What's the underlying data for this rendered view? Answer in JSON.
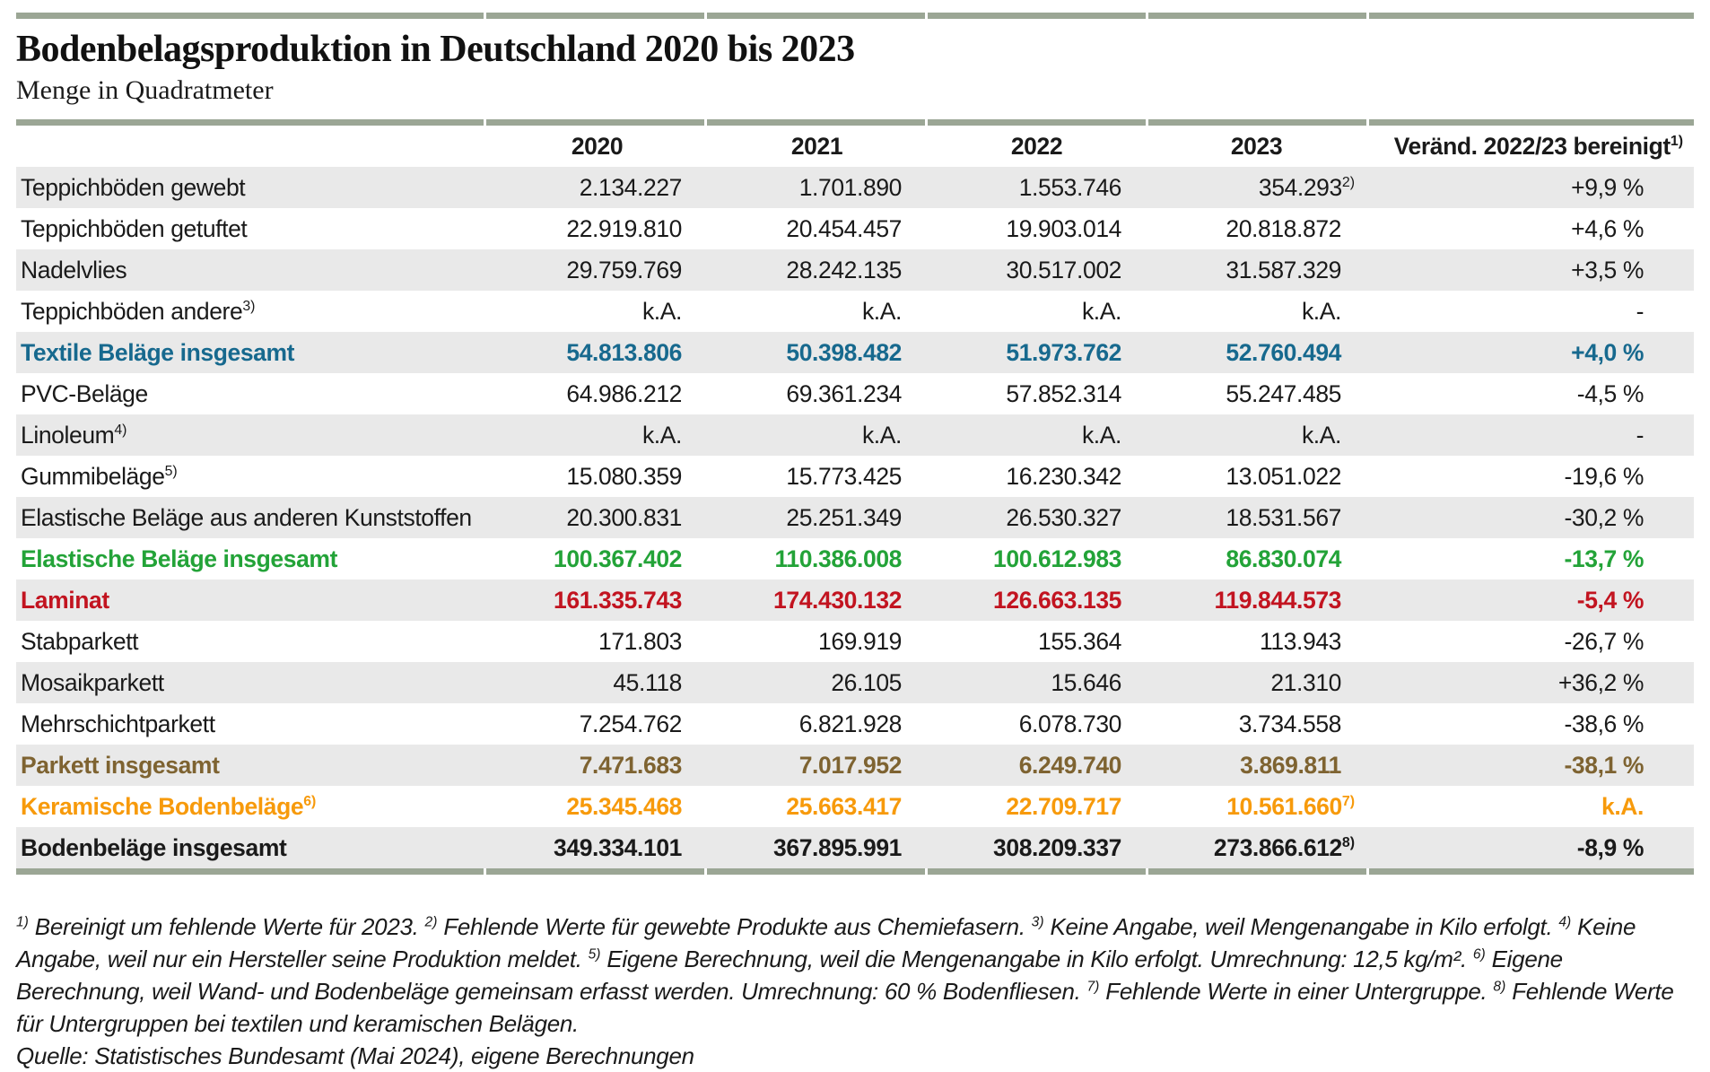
{
  "page": {
    "title": "Bodenbelagsproduktion in Deutschland 2020 bis 2023",
    "subtitle": "Menge in Quadratmeter"
  },
  "colors": {
    "teal": "#17698E",
    "green": "#23A338",
    "red": "#C21420",
    "brown": "#7E6331",
    "orange": "#F79A0B",
    "rule": "#9BA695",
    "stripe": "#E9E9E9"
  },
  "chart_data": {
    "type": "table",
    "title": "Bodenbelagsproduktion in Deutschland 2020 bis 2023",
    "unit": "Menge in Quadratmeter",
    "columns": [
      "2020",
      "2021",
      "2022",
      "2023",
      "Veränd. 2022/23 bereinigt"
    ],
    "change_col_sup": "1)",
    "rows": [
      {
        "label": "Teppichböden gewebt",
        "label_sup": "",
        "values": [
          "2.134.227",
          "1.701.890",
          "1.553.746",
          "354.293"
        ],
        "value_sups": [
          "",
          "",
          "",
          "2)"
        ],
        "change": "+9,9 %",
        "variant": ""
      },
      {
        "label": "Teppichböden getuftet",
        "label_sup": "",
        "values": [
          "22.919.810",
          "20.454.457",
          "19.903.014",
          "20.818.872"
        ],
        "value_sups": [
          "",
          "",
          "",
          ""
        ],
        "change": "+4,6 %",
        "variant": ""
      },
      {
        "label": "Nadelvlies",
        "label_sup": "",
        "values": [
          "29.759.769",
          "28.242.135",
          "30.517.002",
          "31.587.329"
        ],
        "value_sups": [
          "",
          "",
          "",
          ""
        ],
        "change": "+3,5 %",
        "variant": ""
      },
      {
        "label": "Teppichböden andere",
        "label_sup": "3)",
        "values": [
          "k.A.",
          "k.A.",
          "k.A.",
          "k.A."
        ],
        "value_sups": [
          "",
          "",
          "",
          ""
        ],
        "change": "-",
        "variant": ""
      },
      {
        "label": "Textile Beläge insgesamt",
        "label_sup": "",
        "values": [
          "54.813.806",
          "50.398.482",
          "51.973.762",
          "52.760.494"
        ],
        "value_sups": [
          "",
          "",
          "",
          ""
        ],
        "change": "+4,0 %",
        "variant": "teal"
      },
      {
        "label": "PVC-Beläge",
        "label_sup": "",
        "values": [
          "64.986.212",
          "69.361.234",
          "57.852.314",
          "55.247.485"
        ],
        "value_sups": [
          "",
          "",
          "",
          ""
        ],
        "change": "-4,5 %",
        "variant": ""
      },
      {
        "label": "Linoleum",
        "label_sup": "4)",
        "values": [
          "k.A.",
          "k.A.",
          "k.A.",
          "k.A."
        ],
        "value_sups": [
          "",
          "",
          "",
          ""
        ],
        "change": "-",
        "variant": ""
      },
      {
        "label": "Gummibeläge",
        "label_sup": "5)",
        "values": [
          "15.080.359",
          "15.773.425",
          "16.230.342",
          "13.051.022"
        ],
        "value_sups": [
          "",
          "",
          "",
          ""
        ],
        "change": "-19,6 %",
        "variant": ""
      },
      {
        "label": "Elastische Beläge aus anderen Kunststoffen",
        "label_sup": "",
        "values": [
          "20.300.831",
          "25.251.349",
          "26.530.327",
          "18.531.567"
        ],
        "value_sups": [
          "",
          "",
          "",
          ""
        ],
        "change": "-30,2 %",
        "variant": ""
      },
      {
        "label": "Elastische Beläge insgesamt",
        "label_sup": "",
        "values": [
          "100.367.402",
          "110.386.008",
          "100.612.983",
          "86.830.074"
        ],
        "value_sups": [
          "",
          "",
          "",
          ""
        ],
        "change": "-13,7 %",
        "variant": "green"
      },
      {
        "label": "Laminat",
        "label_sup": "",
        "values": [
          "161.335.743",
          "174.430.132",
          "126.663.135",
          "119.844.573"
        ],
        "value_sups": [
          "",
          "",
          "",
          ""
        ],
        "change": "-5,4 %",
        "variant": "red"
      },
      {
        "label": "Stabparkett",
        "label_sup": "",
        "values": [
          "171.803",
          "169.919",
          "155.364",
          "113.943"
        ],
        "value_sups": [
          "",
          "",
          "",
          ""
        ],
        "change": "-26,7 %",
        "variant": ""
      },
      {
        "label": "Mosaikparkett",
        "label_sup": "",
        "values": [
          "45.118",
          "26.105",
          "15.646",
          "21.310"
        ],
        "value_sups": [
          "",
          "",
          "",
          ""
        ],
        "change": "+36,2 %",
        "variant": ""
      },
      {
        "label": "Mehrschichtparkett",
        "label_sup": "",
        "values": [
          "7.254.762",
          "6.821.928",
          "6.078.730",
          "3.734.558"
        ],
        "value_sups": [
          "",
          "",
          "",
          ""
        ],
        "change": "-38,6 %",
        "variant": ""
      },
      {
        "label": "Parkett insgesamt",
        "label_sup": "",
        "values": [
          "7.471.683",
          "7.017.952",
          "6.249.740",
          "3.869.811"
        ],
        "value_sups": [
          "",
          "",
          "",
          ""
        ],
        "change": "-38,1 %",
        "variant": "brown"
      },
      {
        "label": "Keramische Bodenbeläge",
        "label_sup": "6)",
        "values": [
          "25.345.468",
          "25.663.417",
          "22.709.717",
          "10.561.660"
        ],
        "value_sups": [
          "",
          "",
          "",
          "7)"
        ],
        "change": "k.A.",
        "variant": "orange"
      },
      {
        "label": "Bodenbeläge insgesamt",
        "label_sup": "",
        "values": [
          "349.334.101",
          "367.895.991",
          "308.209.337",
          "273.866.612"
        ],
        "value_sups": [
          "",
          "",
          "",
          "8)"
        ],
        "change": "-8,9 %",
        "variant": "total"
      }
    ]
  },
  "footnotes": [
    {
      "sup": "1)",
      "text": "Bereinigt um fehlende Werte für 2023."
    },
    {
      "sup": "2)",
      "text": "Fehlende Werte für gewebte Produkte aus Chemiefasern."
    },
    {
      "sup": "3)",
      "text": "Keine Angabe, weil Mengenangabe in Kilo erfolgt."
    },
    {
      "sup": "4)",
      "text": "Keine Angabe, weil nur ein Hersteller seine Produktion meldet."
    },
    {
      "sup": "5)",
      "text": "Eigene Berechnung, weil die Mengenangabe in Kilo erfolgt. Umrechnung: 12,5 kg/m²."
    },
    {
      "sup": "6)",
      "text": "Eigene Berechnung, weil Wand- und Bodenbeläge gemeinsam erfasst werden. Umrechnung: 60 % Bodenfliesen."
    },
    {
      "sup": "7)",
      "text": "Fehlende Werte in einer Untergruppe."
    },
    {
      "sup": "8)",
      "text": "Fehlende Werte für Untergruppen bei textilen und keramischen Belägen."
    }
  ],
  "source": "Quelle: Statistisches Bundesamt (Mai 2024), eigene Berechnungen"
}
